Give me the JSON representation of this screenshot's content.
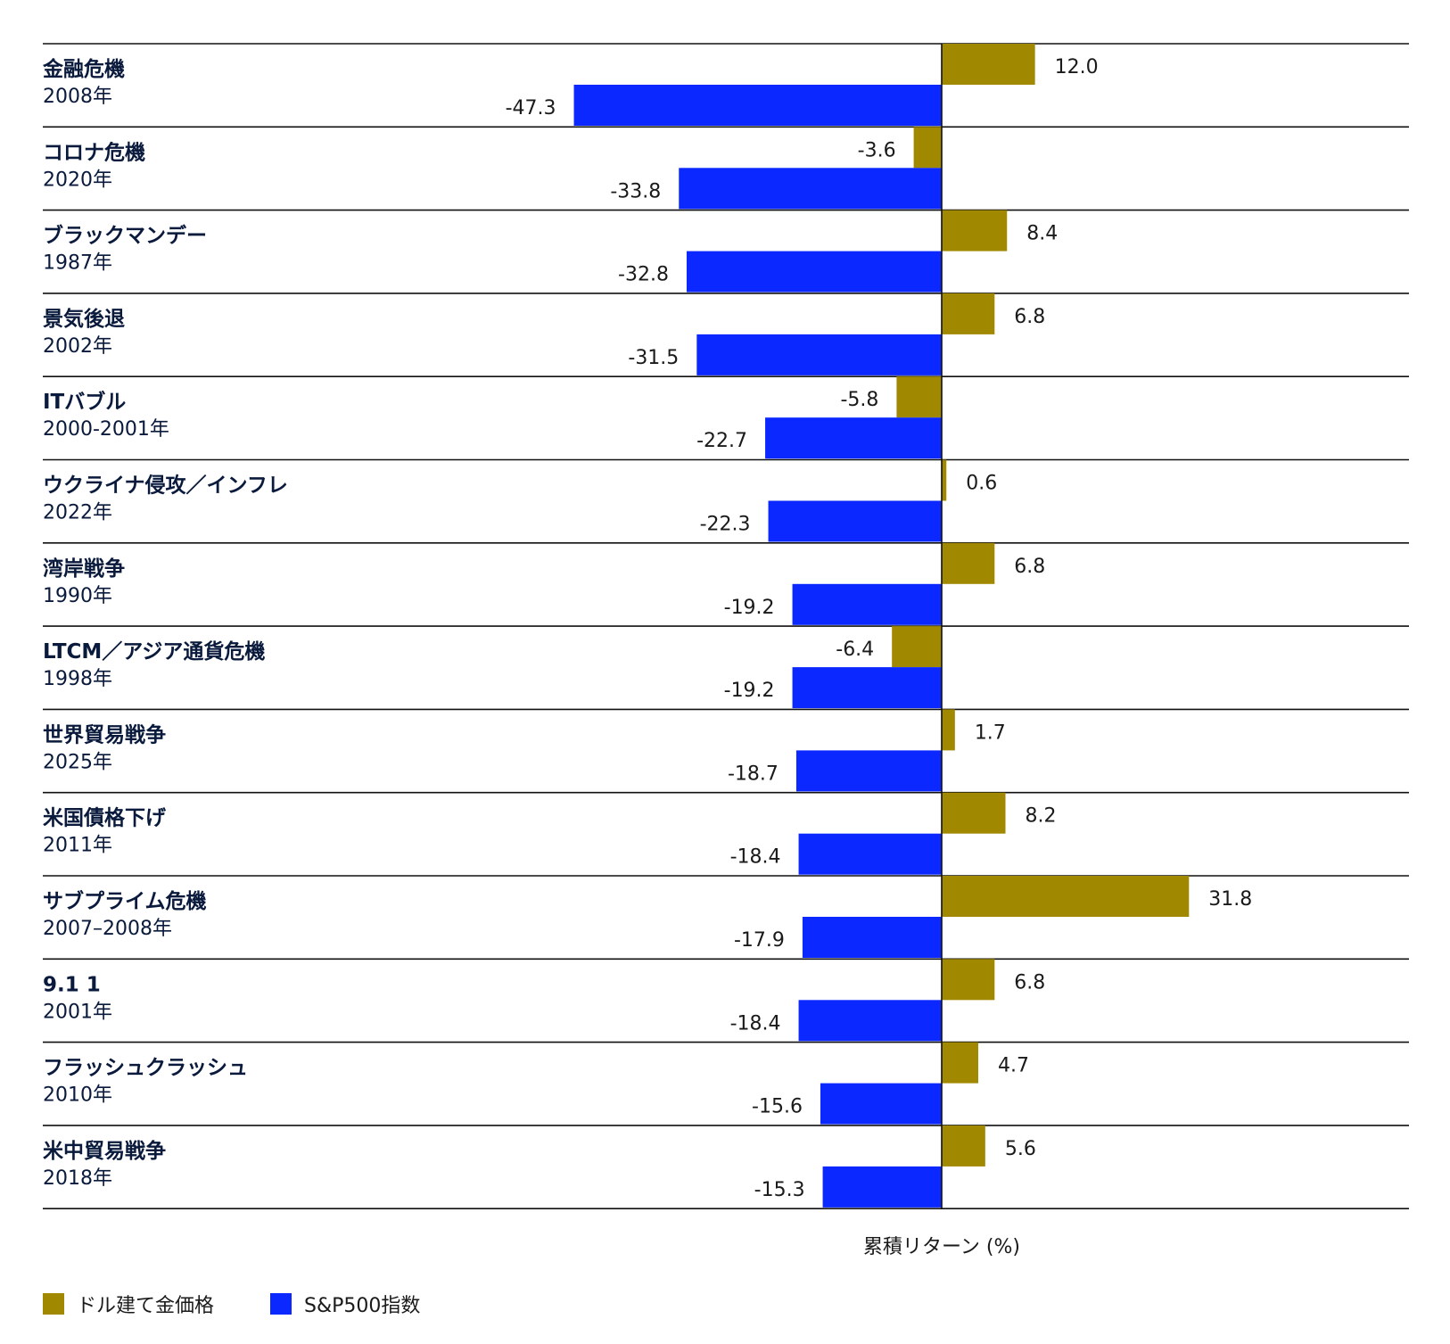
{
  "chart_data": {
    "type": "bar",
    "orientation": "horizontal",
    "xlabel": "累積リターン (%)",
    "categories": [
      {
        "name": "金融危機",
        "year": "2008年"
      },
      {
        "name": "コロナ危機",
        "year": "2020年"
      },
      {
        "name": "ブラックマンデー",
        "year": "1987年"
      },
      {
        "name": "景気後退",
        "year": "2002年"
      },
      {
        "name": "ITバブル",
        "year": "2000-2001年"
      },
      {
        "name": "ウクライナ侵攻／インフレ",
        "year": "2022年"
      },
      {
        "name": "湾岸戦争",
        "year": "1990年"
      },
      {
        "name": "LTCM／アジア通貨危機",
        "year": "1998年"
      },
      {
        "name": "世界貿易戦争",
        "year": "2025年"
      },
      {
        "name": "米国債格下げ",
        "year": "2011年"
      },
      {
        "name": "サブプライム危機",
        "year": "2007–2008年"
      },
      {
        "name": "9.1 1",
        "year": "2001年"
      },
      {
        "name": "フラッシュクラッシュ",
        "year": "2010年"
      },
      {
        "name": "米中貿易戦争",
        "year": "2018年"
      }
    ],
    "series": [
      {
        "name": "ドル建て金価格",
        "color": "#a08800",
        "values": [
          12.0,
          -3.6,
          8.4,
          6.8,
          -5.8,
          0.6,
          6.8,
          -6.4,
          1.7,
          8.2,
          31.8,
          6.8,
          4.7,
          5.6
        ],
        "labels": [
          "12.0",
          "-3.6",
          "8.4",
          "6.8",
          "-5.8",
          "0.6",
          "6.8",
          "-6.4",
          "1.7",
          "8.2",
          "31.8",
          "6.8",
          "4.7",
          "5.6"
        ]
      },
      {
        "name": "S&P500指数",
        "color": "#0a28ff",
        "values": [
          -47.3,
          -33.8,
          -32.8,
          -31.5,
          -22.7,
          -22.3,
          -19.2,
          -19.2,
          -18.7,
          -18.4,
          -17.9,
          -18.4,
          -15.6,
          -15.3
        ],
        "labels": [
          "-47.3",
          "-33.8",
          "-32.8",
          "-31.5",
          "-22.7",
          "-22.3",
          "-19.2",
          "-19.2",
          "-18.7",
          "-18.4",
          "-17.9",
          "-18.4",
          "-15.6",
          "-15.3"
        ]
      }
    ],
    "grid": false,
    "legend_position": "bottom-left"
  }
}
